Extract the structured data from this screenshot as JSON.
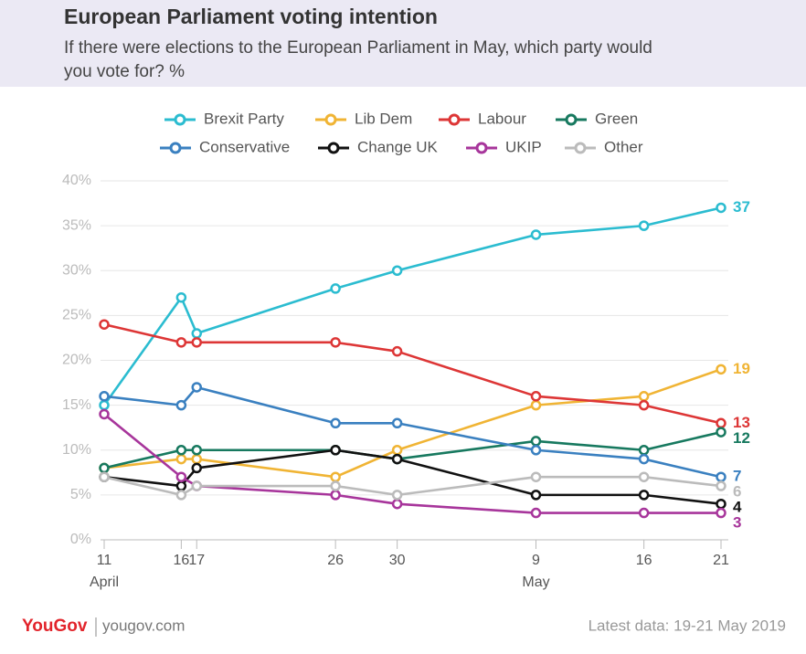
{
  "chart_data": {
    "type": "line",
    "title": "European Parliament voting intention",
    "subtitle": [
      "If there were elections to the European Parliament in May, which party would",
      "you vote for? %"
    ],
    "x": [
      "2019-04-11",
      "2019-04-16",
      "2019-04-17",
      "2019-04-26",
      "2019-04-30",
      "2019-05-09",
      "2019-05-16",
      "2019-05-21"
    ],
    "xlim": [
      "2019-04-11",
      "2019-05-21"
    ],
    "xticks": [
      {
        "value": "2019-04-11",
        "label": "11"
      },
      {
        "value": "2019-04-16",
        "label": "16"
      },
      {
        "value": "2019-04-17",
        "label": "17"
      },
      {
        "value": "2019-04-26",
        "label": "26"
      },
      {
        "value": "2019-04-30",
        "label": "30"
      },
      {
        "value": "2019-05-09",
        "label": "9"
      },
      {
        "value": "2019-05-16",
        "label": "16"
      },
      {
        "value": "2019-05-21",
        "label": "21"
      }
    ],
    "x_month_labels": [
      {
        "value": "2019-04-11",
        "label": "April"
      },
      {
        "value": "2019-05-09",
        "label": "May"
      }
    ],
    "ylim": [
      0,
      40
    ],
    "yticks": [
      {
        "value": 0,
        "label": "0%"
      },
      {
        "value": 5,
        "label": "5%"
      },
      {
        "value": 10,
        "label": "10%"
      },
      {
        "value": 15,
        "label": "15%"
      },
      {
        "value": 20,
        "label": "20%"
      },
      {
        "value": 25,
        "label": "25%"
      },
      {
        "value": 30,
        "label": "30%"
      },
      {
        "value": 35,
        "label": "35%"
      },
      {
        "value": 40,
        "label": "40%"
      }
    ],
    "grid": true,
    "legend_position": "top",
    "series": [
      {
        "name": "Brexit Party",
        "color": "#2bbcd0",
        "values": [
          15,
          27,
          23,
          28,
          30,
          34,
          35,
          37
        ]
      },
      {
        "name": "Lib Dem",
        "color": "#f0b434",
        "values": [
          8,
          9,
          9,
          7,
          10,
          15,
          16,
          19
        ]
      },
      {
        "name": "Labour",
        "color": "#dd3636",
        "values": [
          24,
          22,
          22,
          22,
          21,
          16,
          15,
          13
        ]
      },
      {
        "name": "Green",
        "color": "#17795f",
        "values": [
          8,
          10,
          10,
          10,
          9,
          11,
          10,
          12
        ]
      },
      {
        "name": "Conservative",
        "color": "#3a80c0",
        "values": [
          16,
          15,
          17,
          13,
          13,
          10,
          9,
          7
        ]
      },
      {
        "name": "Change UK",
        "color": "#111111",
        "values": [
          7,
          6,
          8,
          10,
          9,
          5,
          5,
          4
        ]
      },
      {
        "name": "UKIP",
        "color": "#a7359b",
        "values": [
          14,
          7,
          6,
          5,
          4,
          3,
          3,
          3
        ]
      },
      {
        "name": "Other",
        "color": "#bbbbbb",
        "values": [
          7,
          5,
          6,
          6,
          5,
          7,
          7,
          6
        ]
      }
    ],
    "footer": {
      "logo": "YouGov",
      "site": "yougov.com",
      "note": "Latest data: 19-21 May 2019"
    }
  }
}
